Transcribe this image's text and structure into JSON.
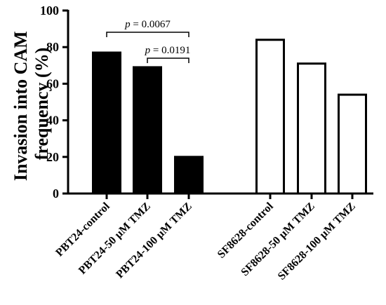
{
  "chart_data": {
    "type": "bar",
    "ylabel_lines": [
      "Invasion into CAM",
      "frequency (%)"
    ],
    "ylim": [
      0,
      100
    ],
    "yticks": [
      0,
      20,
      40,
      60,
      80,
      100
    ],
    "grid": false,
    "categories": [
      "PBT24-control",
      "PBT24-50 µM TMZ",
      "PBT24-100 µM TMZ",
      "SF8628-control",
      "SF8628-50 µM TMZ",
      "SF8628-100 µM TMZ"
    ],
    "values": [
      77,
      69,
      20,
      84,
      71,
      54
    ],
    "bar_colors": [
      "#000000",
      "#000000",
      "#000000",
      "#ffffff",
      "#ffffff",
      "#ffffff"
    ],
    "annotations": [
      {
        "from": 0,
        "to": 2,
        "p_symbol": "p",
        "p_value": " = 0.0067"
      },
      {
        "from": 1,
        "to": 2,
        "p_symbol": "p",
        "p_value": " = 0.0191"
      }
    ]
  }
}
